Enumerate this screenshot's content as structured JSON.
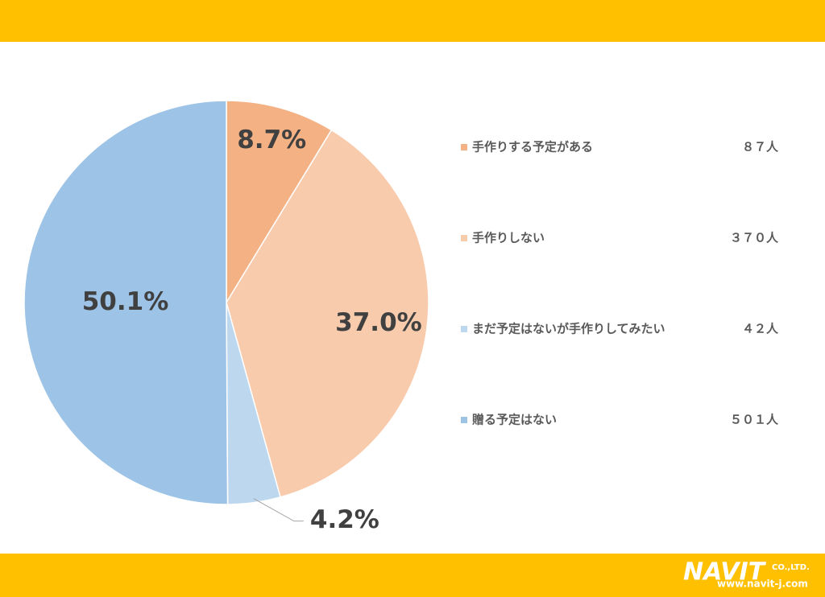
{
  "chart_data": {
    "type": "pie",
    "categories": [
      "手作りする予定がある",
      "手作りしない",
      "まだ予定はないが手作りしてみたい",
      "贈る予定はない"
    ],
    "values": [
      8.7,
      37.0,
      4.2,
      50.1
    ],
    "value_labels": [
      "8.7%",
      "37.0%",
      "4.2%",
      "50.1%"
    ],
    "colors": [
      "#f4b183",
      "#f8cbad",
      "#bdd7ee",
      "#9dc3e6"
    ],
    "counts": [
      87,
      370,
      42,
      501
    ],
    "count_labels": [
      "８７人",
      "３７０人",
      "４２人",
      "５０１人"
    ]
  },
  "logo": {
    "name": "NAVIT",
    "suffix": "CO.,LTD.",
    "url": "www.navit-j.com"
  }
}
